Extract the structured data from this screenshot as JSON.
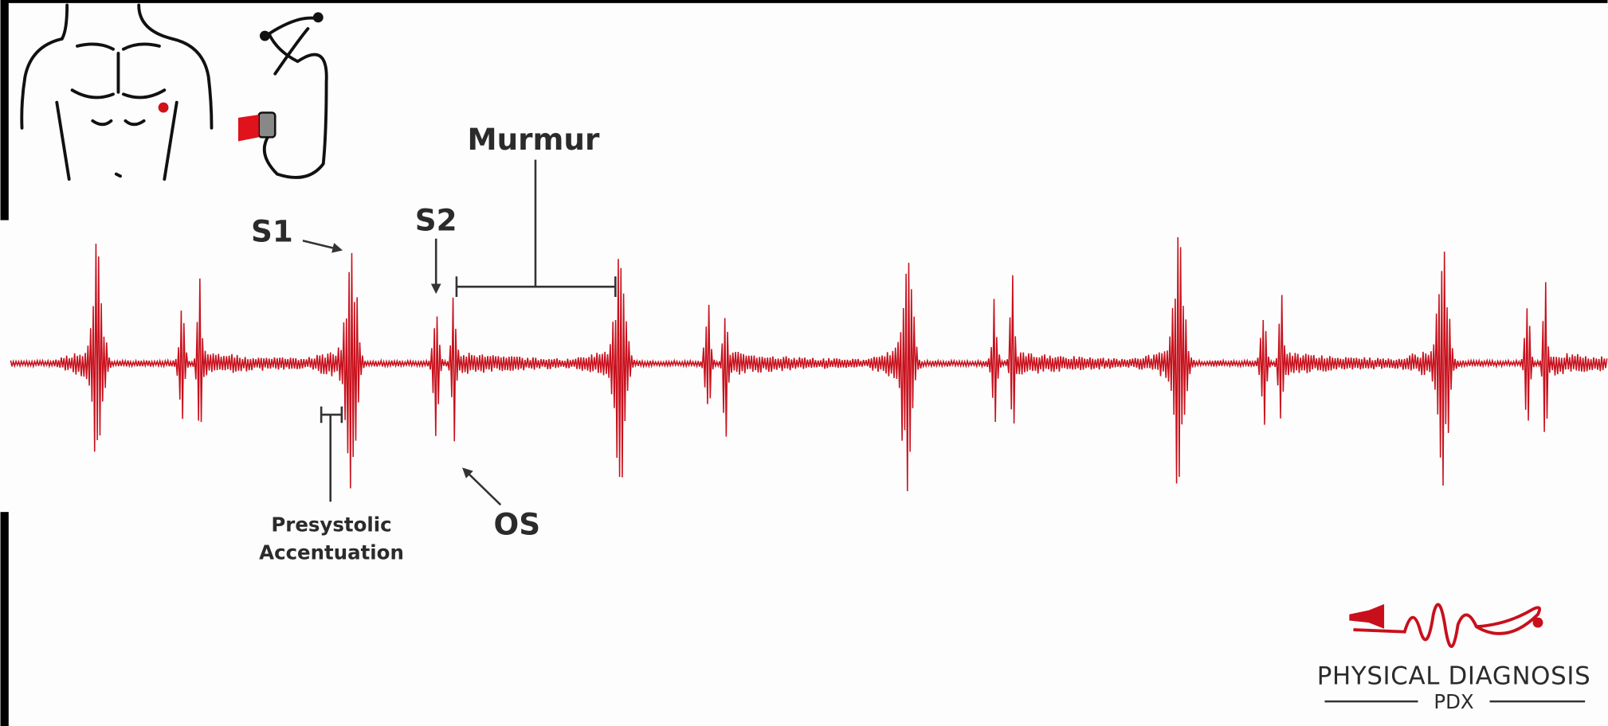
{
  "labels": {
    "murmur": "Murmur",
    "s1": "S1",
    "s2": "S2",
    "os": "OS",
    "presystolic": [
      "Presystolic",
      "Accentuation"
    ]
  },
  "logo": {
    "name": "PHYSICAL DIAGNOSIS",
    "abbr": "PDX"
  }
}
